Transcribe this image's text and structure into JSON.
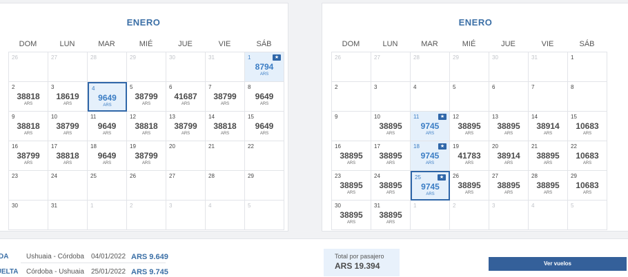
{
  "weekdays": [
    "DOM",
    "LUN",
    "MAR",
    "MIÉ",
    "JUE",
    "VIE",
    "SÁB"
  ],
  "currency": "ARS",
  "calendars": [
    {
      "month": "ENERO",
      "days": [
        {
          "d": "26",
          "o": true
        },
        {
          "d": "27",
          "o": true
        },
        {
          "d": "28",
          "o": true
        },
        {
          "d": "29",
          "o": true
        },
        {
          "d": "30",
          "o": true
        },
        {
          "d": "31",
          "o": true
        },
        {
          "d": "1",
          "p": "8794",
          "low": true,
          "badge": true
        },
        {
          "d": "2",
          "p": "38818"
        },
        {
          "d": "3",
          "p": "18619"
        },
        {
          "d": "4",
          "p": "9649",
          "low": true,
          "sel": true
        },
        {
          "d": "5",
          "p": "38799"
        },
        {
          "d": "6",
          "p": "41687"
        },
        {
          "d": "7",
          "p": "38799"
        },
        {
          "d": "8",
          "p": "9649"
        },
        {
          "d": "9",
          "p": "38818"
        },
        {
          "d": "10",
          "p": "38799"
        },
        {
          "d": "11",
          "p": "9649"
        },
        {
          "d": "12",
          "p": "38818"
        },
        {
          "d": "13",
          "p": "38799"
        },
        {
          "d": "14",
          "p": "38818"
        },
        {
          "d": "15",
          "p": "9649"
        },
        {
          "d": "16",
          "p": "38799"
        },
        {
          "d": "17",
          "p": "38818"
        },
        {
          "d": "18",
          "p": "9649"
        },
        {
          "d": "19",
          "p": "38799"
        },
        {
          "d": "20"
        },
        {
          "d": "21"
        },
        {
          "d": "22"
        },
        {
          "d": "23"
        },
        {
          "d": "24"
        },
        {
          "d": "25"
        },
        {
          "d": "26"
        },
        {
          "d": "27"
        },
        {
          "d": "28"
        },
        {
          "d": "29"
        },
        {
          "d": "30"
        },
        {
          "d": "31"
        },
        {
          "d": "1",
          "o": true
        },
        {
          "d": "2",
          "o": true
        },
        {
          "d": "3",
          "o": true
        },
        {
          "d": "4",
          "o": true
        },
        {
          "d": "5",
          "o": true
        }
      ]
    },
    {
      "month": "ENERO",
      "days": [
        {
          "d": "26",
          "o": true
        },
        {
          "d": "27",
          "o": true
        },
        {
          "d": "28",
          "o": true
        },
        {
          "d": "29",
          "o": true
        },
        {
          "d": "30",
          "o": true
        },
        {
          "d": "31",
          "o": true
        },
        {
          "d": "1"
        },
        {
          "d": "2"
        },
        {
          "d": "3"
        },
        {
          "d": "4"
        },
        {
          "d": "5"
        },
        {
          "d": "6"
        },
        {
          "d": "7"
        },
        {
          "d": "8"
        },
        {
          "d": "9"
        },
        {
          "d": "10",
          "p": "38895"
        },
        {
          "d": "11",
          "p": "9745",
          "low": true,
          "badge": true
        },
        {
          "d": "12",
          "p": "38895"
        },
        {
          "d": "13",
          "p": "38895"
        },
        {
          "d": "14",
          "p": "38914"
        },
        {
          "d": "15",
          "p": "10683"
        },
        {
          "d": "16",
          "p": "38895"
        },
        {
          "d": "17",
          "p": "38895"
        },
        {
          "d": "18",
          "p": "9745",
          "low": true,
          "badge": true
        },
        {
          "d": "19",
          "p": "41783"
        },
        {
          "d": "20",
          "p": "38914"
        },
        {
          "d": "21",
          "p": "38895"
        },
        {
          "d": "22",
          "p": "10683"
        },
        {
          "d": "23",
          "p": "38895"
        },
        {
          "d": "24",
          "p": "38895"
        },
        {
          "d": "25",
          "p": "9745",
          "low": true,
          "badge": true,
          "sel": true
        },
        {
          "d": "26",
          "p": "38895"
        },
        {
          "d": "27",
          "p": "38895"
        },
        {
          "d": "28",
          "p": "38895"
        },
        {
          "d": "29",
          "p": "10683"
        },
        {
          "d": "30",
          "p": "38895"
        },
        {
          "d": "31",
          "p": "38895"
        },
        {
          "d": "1",
          "o": true
        },
        {
          "d": "2",
          "o": true
        },
        {
          "d": "3",
          "o": true
        },
        {
          "d": "4",
          "o": true
        },
        {
          "d": "5",
          "o": true
        }
      ]
    }
  ],
  "summary": {
    "outbound": {
      "label": "DA",
      "route": "Ushuaia - Córdoba",
      "date": "04/01/2022",
      "price": "ARS 9.649"
    },
    "return": {
      "label": "VUELTA",
      "route": "Córdoba - Ushuaia",
      "date": "25/01/2022",
      "price": "ARS 9.745"
    },
    "total_label": "Total por pasajero",
    "total_value": "ARS 19.394",
    "cta": "Ver vuelos"
  },
  "colors": {
    "accent": "#3b6fa6",
    "lowest_bg": "#e5f0fb",
    "button": "#34609a"
  }
}
